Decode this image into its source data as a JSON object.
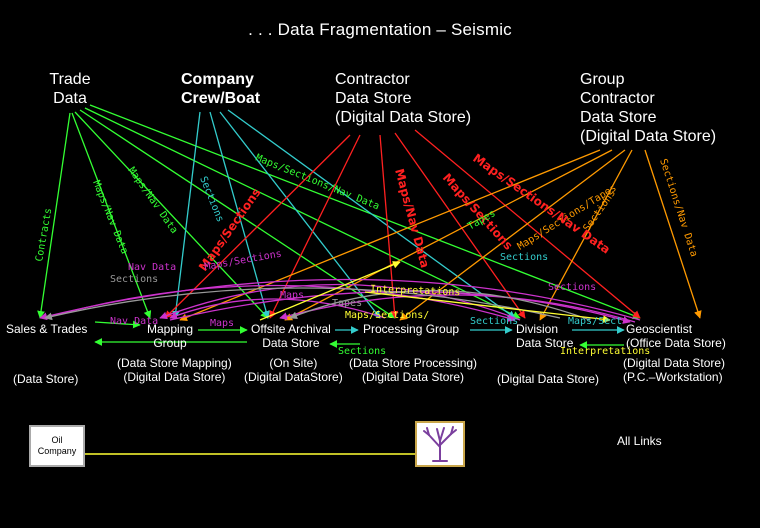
{
  "title": ". . . Data Fragmentation – Seismic",
  "sources": {
    "trade": [
      "Trade",
      "Data"
    ],
    "company": [
      "Company",
      "Crew/Boat"
    ],
    "contractor": [
      "Contractor",
      "Data Store",
      "(Digital Data Store)"
    ],
    "group": [
      "Group",
      "Contractor",
      "Data Store",
      "(Digital Data Store)"
    ]
  },
  "nodes": {
    "sales": {
      "label": "Sales & Trades",
      "sub": [
        "(Data Store)"
      ]
    },
    "mapping": {
      "label": [
        "Mapping",
        "Group"
      ],
      "sub": [
        "(Data Store Mapping)",
        "(Digital Data Store)"
      ]
    },
    "offsite": {
      "label": [
        "Offsite Archival",
        "Data Store"
      ],
      "sub": [
        "(On Site)",
        "(Digital DataStore)"
      ]
    },
    "processing": {
      "label": "Processing Group",
      "sub": [
        "(Data Store Processing)",
        "(Digital Data Store)"
      ]
    },
    "division": {
      "label": [
        "Division",
        "Data Store"
      ],
      "sub": [
        "(Digital Data Store)"
      ]
    },
    "geoscientist": {
      "label": [
        "Geoscientist",
        "(Office Data Store)"
      ],
      "sub": [
        "(Digital Data Store)",
        "(P.C.–Workstation)"
      ]
    }
  },
  "edge_labels": {
    "contracts": "Contracts",
    "maps_nav_data": "Maps/Nav Data",
    "sections": "Sections",
    "maps_sections_nav_data": "Maps/Sections/Nav Data",
    "maps_sections_tapes": "Maps/Sections/Tapes",
    "maps_sections": "Maps/Sections",
    "nav_data": "Nav Data",
    "maps": "Maps",
    "tapes": "Tapes",
    "interpretations": "Interpretations",
    "sections_nav_data": "Sections/Nav Data",
    "maps_sect": "Maps/Sect",
    "maps_sections_bold": "Maps/Sections",
    "maps_sections_nav_data_bold": "Maps/Sections/Nav Data",
    "maps_nav_data_bold": "Maps/Nav Data",
    "sections_small": "Sections",
    "interpretations_small": "Interpretations",
    "interpretations_low": "Interpretations",
    "nav_data_small": "Nav Data",
    "maps_sections_slash": "Maps/Sections/",
    "tapes_2": "Tapes"
  },
  "footer": {
    "oil_company": [
      "Oil",
      "Company"
    ],
    "all_links": "All Links",
    "tree_icon": "tree-icon"
  },
  "colors": {
    "green": "#33ff33",
    "teal": "#33cccc",
    "red": "#ff2020",
    "orange": "#ff9a00",
    "magenta": "#cc33cc",
    "yellow": "#ffff33",
    "gray": "#999999",
    "tree_purple": "#7b3f9e"
  }
}
